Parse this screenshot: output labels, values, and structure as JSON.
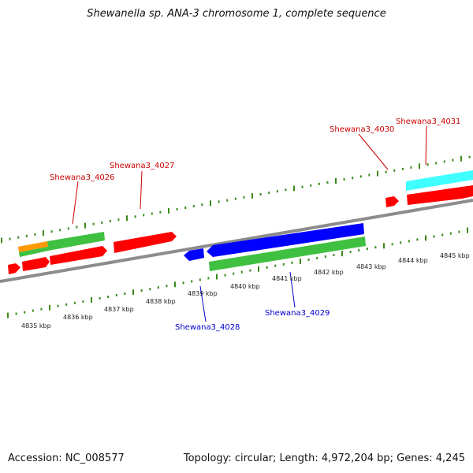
{
  "title": "Shewanella sp. ANA-3 chromosome 1, complete sequence",
  "footer": {
    "accession": "Accession: NC_008577",
    "summary": "Topology: circular; Length: 4,972,204 bp; Genes: 4,245"
  },
  "colors": {
    "backbone": "#8c8c8c",
    "tick": "#3a8a1a",
    "forward_gene": "#ff0000",
    "reverse_gene": "#0000ff",
    "cds_green": "#40c040",
    "cds_cyan": "#40ffff",
    "cds_orange": "#ff9900",
    "label_forward": "#cc0000",
    "label_reverse": "#0000cc"
  },
  "scale_labels": [
    "4835 kbp",
    "4836 kbp",
    "4837 kbp",
    "4838 kbp",
    "4839 kbp",
    "4840 kbp",
    "4841 kbp",
    "4842 kbp",
    "4843 kbp",
    "4844 kbp",
    "4845 kbp"
  ],
  "gene_labels": {
    "forward": [
      "Shewana3_4026",
      "Shewana3_4027",
      "Shewana3_4030",
      "Shewana3_4031"
    ],
    "reverse": [
      "Shewana3_4028",
      "Shewana3_4029"
    ]
  }
}
